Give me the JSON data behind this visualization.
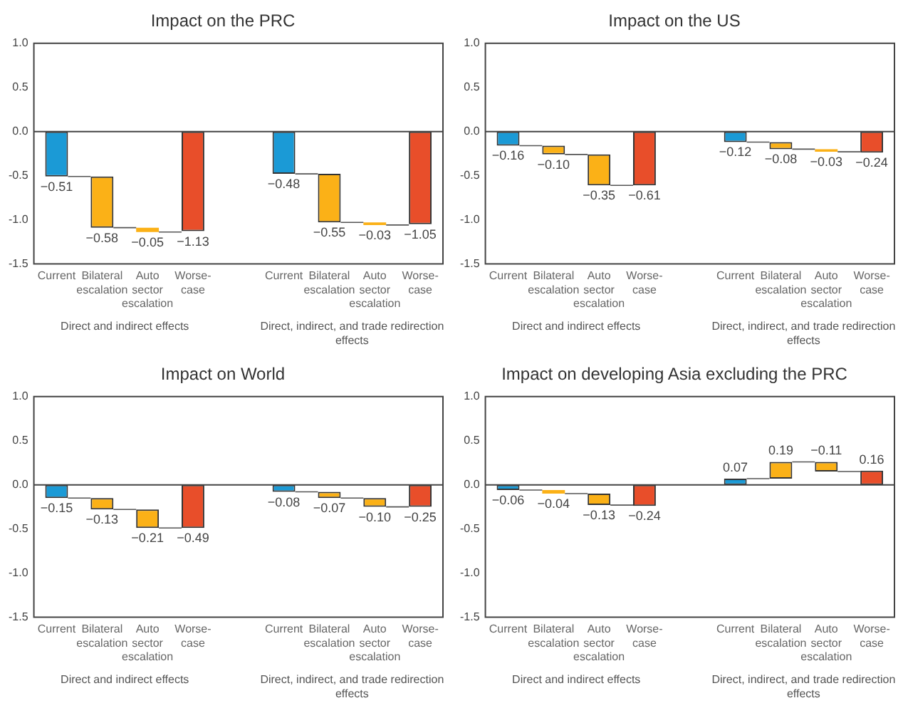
{
  "chart_data": [
    {
      "type": "bar",
      "title": "Impact on the PRC",
      "categories": [
        "Current",
        "Bilateral escalation",
        "Auto sector escalation",
        "Worse-case",
        null,
        "Current",
        "Bilateral escalation",
        "Auto sector escalation",
        "Worse-case"
      ],
      "values": [
        -0.51,
        -0.58,
        -0.05,
        -1.13,
        null,
        -0.48,
        -0.55,
        -0.03,
        -1.05
      ],
      "value_labels": [
        "−0.51",
        "−0.58",
        "−0.05",
        "−1.13",
        null,
        "−0.48",
        "−0.55",
        "−0.03",
        "−1.05"
      ],
      "ref_lines": [
        {
          "axis": "y",
          "value": 0
        }
      ],
      "base": [
        0,
        -0.51,
        -1.09,
        0,
        null,
        0,
        -0.48,
        -1.03,
        0
      ],
      "colors": [
        "#1b9ad6",
        "#fbb117",
        "#fbb117",
        "#e84e2a",
        null,
        "#1b9ad6",
        "#fbb117",
        "#fbb117",
        "#e84e2a"
      ],
      "ylim": [
        -1.5,
        1.0
      ],
      "yticks": [
        {
          "value": -1.5,
          "label": "-1.5"
        },
        {
          "value": -1.0,
          "label": "-1.0"
        },
        {
          "value": -0.5,
          "label": "-0.5"
        },
        {
          "value": 0,
          "label": "0.0"
        },
        {
          "value": 0.5,
          "label": "0.5"
        },
        {
          "value": 1.0,
          "label": "1.0"
        }
      ],
      "grid": false,
      "annotations": [
        "Direct and indirect effects",
        "Direct, indirect, and trade redirection effects"
      ]
    },
    {
      "type": "bar",
      "title": "Impact on the US",
      "categories": [
        "Current",
        "Bilateral escalation",
        "Auto sector escalation",
        "Worse-case",
        null,
        "Current",
        "Bilateral escalation",
        "Auto sector escalation",
        "Worse-case"
      ],
      "values": [
        -0.16,
        -0.1,
        -0.35,
        -0.61,
        null,
        -0.12,
        -0.08,
        -0.03,
        -0.24
      ],
      "value_labels": [
        "−0.16",
        "−0.10",
        "−0.35",
        "−0.61",
        null,
        "−0.12",
        "−0.08",
        "−0.03",
        "−0.24"
      ],
      "ref_lines": [
        {
          "axis": "y",
          "value": 0
        }
      ],
      "base": [
        0,
        -0.16,
        -0.26,
        0,
        null,
        0,
        -0.12,
        -0.2,
        0
      ],
      "colors": [
        "#1b9ad6",
        "#fbb117",
        "#fbb117",
        "#e84e2a",
        null,
        "#1b9ad6",
        "#fbb117",
        "#fbb117",
        "#e84e2a"
      ],
      "ylim": [
        -1.5,
        1.0
      ],
      "yticks": [
        {
          "value": -1.5,
          "label": "-1.5"
        },
        {
          "value": -1.0,
          "label": "-1.0"
        },
        {
          "value": -0.5,
          "label": "-0.5"
        },
        {
          "value": 0,
          "label": "0.0"
        },
        {
          "value": 0.5,
          "label": "0.5"
        },
        {
          "value": 1.0,
          "label": "1.0"
        }
      ],
      "grid": false,
      "annotations": [
        "Direct and indirect effects",
        "Direct, indirect, and trade redirection effects"
      ]
    },
    {
      "type": "bar",
      "title": "Impact on World",
      "categories": [
        "Current",
        "Bilateral escalation",
        "Auto sector escalation",
        "Worse-case",
        null,
        "Current",
        "Bilateral escalation",
        "Auto sector escalation",
        "Worse-case"
      ],
      "values": [
        -0.15,
        -0.13,
        -0.21,
        -0.49,
        null,
        -0.08,
        -0.07,
        -0.1,
        -0.25
      ],
      "value_labels": [
        "−0.15",
        "−0.13",
        "−0.21",
        "−0.49",
        null,
        "−0.08",
        "−0.07",
        "−0.10",
        "−0.25"
      ],
      "ref_lines": [
        {
          "axis": "y",
          "value": 0
        }
      ],
      "base": [
        0,
        -0.15,
        -0.28,
        0,
        null,
        0,
        -0.08,
        -0.15,
        0
      ],
      "colors": [
        "#1b9ad6",
        "#fbb117",
        "#fbb117",
        "#e84e2a",
        null,
        "#1b9ad6",
        "#fbb117",
        "#fbb117",
        "#e84e2a"
      ],
      "ylim": [
        -1.5,
        1.0
      ],
      "yticks": [
        {
          "value": -1.5,
          "label": "-1.5"
        },
        {
          "value": -1.0,
          "label": "-1.0"
        },
        {
          "value": -0.5,
          "label": "-0.5"
        },
        {
          "value": 0,
          "label": "0.0"
        },
        {
          "value": 0.5,
          "label": "0.5"
        },
        {
          "value": 1.0,
          "label": "1.0"
        }
      ],
      "grid": false,
      "annotations": [
        "Direct and indirect effects",
        "Direct, indirect, and trade redirection effects"
      ]
    },
    {
      "type": "bar",
      "title": "Impact on developing Asia excluding the PRC",
      "categories": [
        "Current",
        "Bilateral escalation",
        "Auto sector escalation",
        "Worse-case",
        null,
        "Current",
        "Bilateral escalation",
        "Auto sector escalation",
        "Worse-case"
      ],
      "values": [
        -0.06,
        -0.04,
        -0.13,
        -0.24,
        null,
        0.07,
        0.19,
        -0.11,
        0.16
      ],
      "value_labels": [
        "−0.06",
        "−0.04",
        "−0.13",
        "−0.24",
        null,
        "0.07",
        "0.19",
        "−0.11",
        "0.16"
      ],
      "ref_lines": [
        {
          "axis": "y",
          "value": 0
        }
      ],
      "base": [
        0,
        -0.06,
        -0.1,
        0,
        null,
        0,
        0.07,
        0.26,
        0
      ],
      "colors": [
        "#1b9ad6",
        "#fbb117",
        "#fbb117",
        "#e84e2a",
        null,
        "#1b9ad6",
        "#fbb117",
        "#fbb117",
        "#e84e2a"
      ],
      "ylim": [
        -1.5,
        1.0
      ],
      "yticks": [
        {
          "value": -1.5,
          "label": "-1.5"
        },
        {
          "value": -1.0,
          "label": "-1.0"
        },
        {
          "value": -0.5,
          "label": "-0.5"
        },
        {
          "value": 0,
          "label": "0.0"
        },
        {
          "value": 0.5,
          "label": "0.5"
        },
        {
          "value": 1.0,
          "label": "1.0"
        }
      ],
      "grid": false,
      "annotations": [
        "Direct and indirect effects",
        "Direct, indirect, and trade redirection effects"
      ]
    }
  ]
}
